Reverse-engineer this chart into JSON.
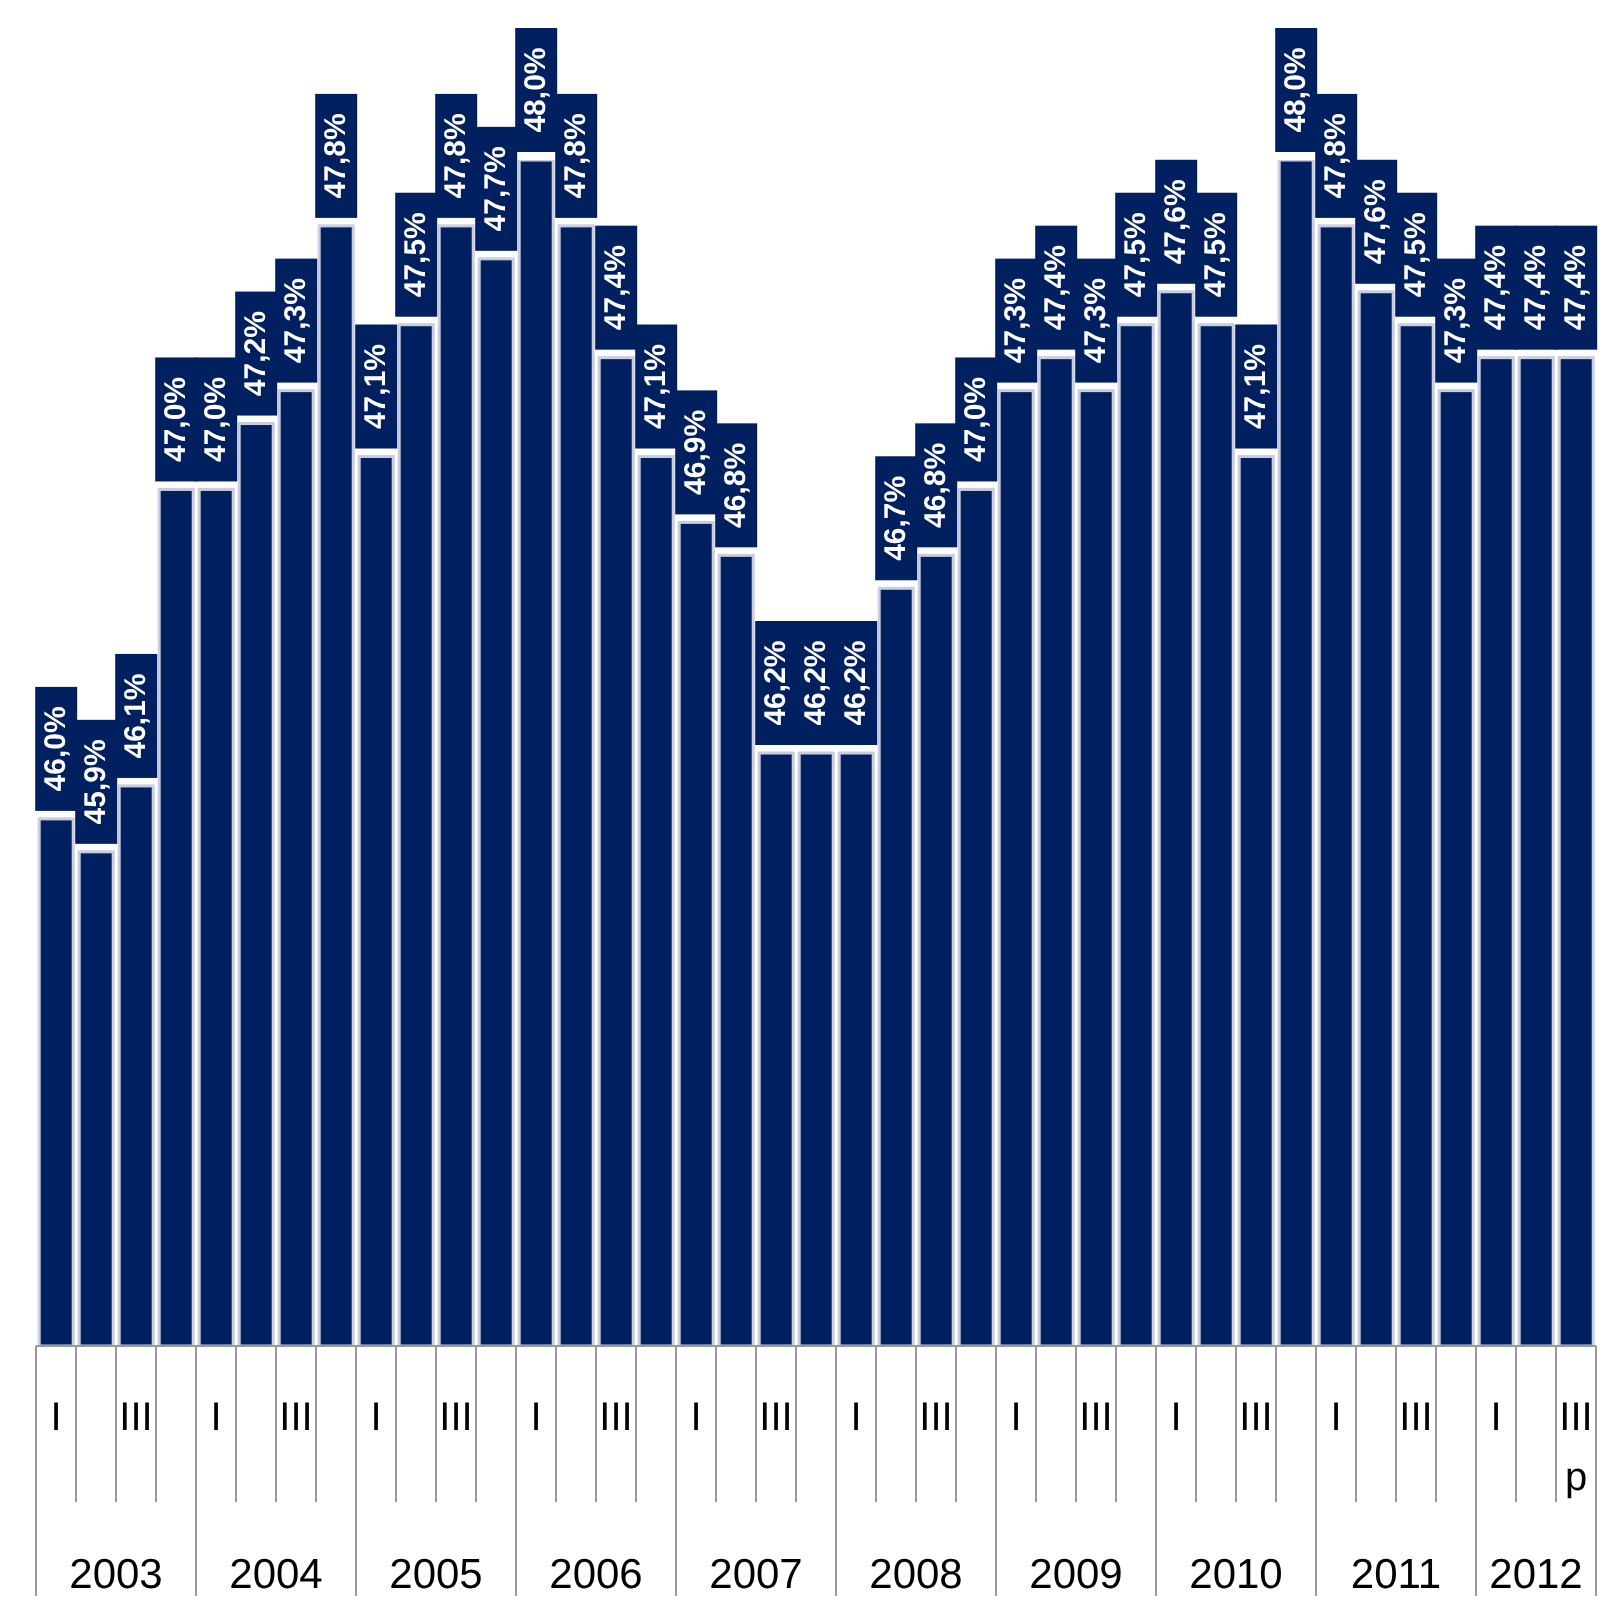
{
  "chart_data": {
    "type": "bar",
    "categories": [
      "I",
      null,
      "III",
      null,
      "I",
      null,
      "III",
      null,
      "I",
      null,
      "III",
      null,
      "I",
      null,
      "III",
      null,
      "I",
      null,
      "III",
      null,
      "I",
      null,
      "III",
      null,
      "I",
      null,
      "III",
      null,
      "I",
      null,
      "III",
      null,
      "I",
      null,
      "III",
      null,
      "I",
      null,
      "III p"
    ],
    "values": [
      46.0,
      45.9,
      46.1,
      47.0,
      47.0,
      47.2,
      47.3,
      47.8,
      47.1,
      47.5,
      47.8,
      47.7,
      48.0,
      47.8,
      47.4,
      47.1,
      46.9,
      46.8,
      46.2,
      46.2,
      46.2,
      46.7,
      46.8,
      47.0,
      47.3,
      47.4,
      47.3,
      47.5,
      47.6,
      47.5,
      47.1,
      48.0,
      47.8,
      47.6,
      47.5,
      47.3,
      47.4,
      47.4,
      47.4
    ],
    "value_labels": [
      "46,0%",
      "45,9%",
      "46,1%",
      "47,0%",
      "47,0%",
      "47,2%",
      "47,3%",
      "47,8%",
      "47,1%",
      "47,5%",
      "47,8%",
      "47,7%",
      "48,0%",
      "47,8%",
      "47,4%",
      "47,1%",
      "46,9%",
      "46,8%",
      "46,2%",
      "46,2%",
      "46,2%",
      "46,7%",
      "46,8%",
      "47,0%",
      "47,3%",
      "47,4%",
      "47,3%",
      "47,5%",
      "47,6%",
      "47,5%",
      "47,1%",
      "48,0%",
      "47,8%",
      "47,6%",
      "47,5%",
      "47,3%",
      "47,4%",
      "47,4%",
      "47,4%"
    ],
    "annotations": [
      "2003",
      "2004",
      "2005",
      "2006",
      "2007",
      "2008",
      "2009",
      "2010",
      "2011",
      "2012"
    ],
    "color": "#002060",
    "ylim": [
      44.4,
      48.0
    ],
    "tick_labels": "x",
    "grid": false,
    "legend": false
  }
}
